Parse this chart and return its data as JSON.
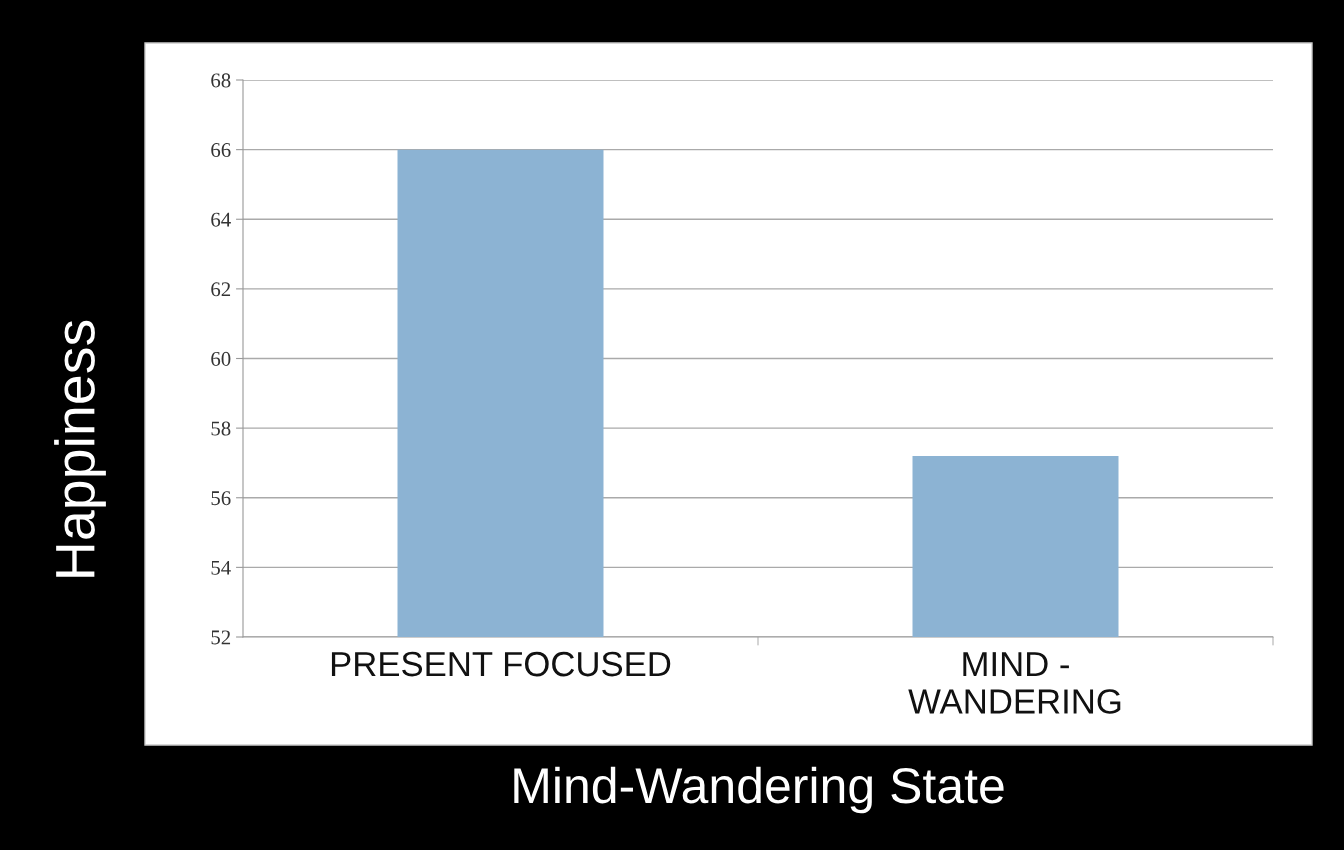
{
  "chart_data": {
    "type": "bar",
    "xlabel": "Mind-Wandering State",
    "ylabel": "Happiness",
    "categories": [
      "PRESENT FOCUSED",
      "MIND -\nWANDERING"
    ],
    "values": [
      66,
      57.2
    ],
    "color": "#8cb3d3",
    "ylim": [
      52,
      68
    ],
    "yticks": [
      52,
      54,
      56,
      58,
      60,
      62,
      64,
      66,
      68
    ],
    "grid": "y"
  }
}
